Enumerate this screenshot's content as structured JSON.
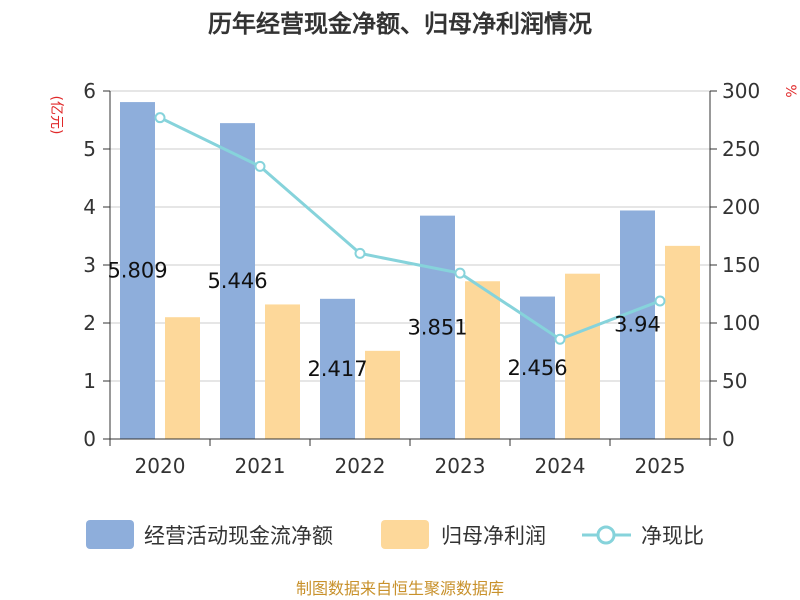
{
  "chart_data": {
    "type": "bar",
    "title": "历年经营现金净额、归母净利润情况",
    "categories": [
      "2020",
      "2021",
      "2022",
      "2023",
      "2024",
      "2025"
    ],
    "series": [
      {
        "name": "经营活动现金流净额",
        "axis": "left",
        "kind": "bar",
        "color": "#8eaedb",
        "values": [
          5.809,
          5.446,
          2.417,
          3.851,
          2.456,
          3.94
        ]
      },
      {
        "name": "归母净利润",
        "axis": "left",
        "kind": "bar",
        "color": "#fdd89a",
        "values": [
          2.1,
          2.32,
          1.52,
          2.72,
          2.85,
          3.33
        ]
      },
      {
        "name": "净现比",
        "axis": "right",
        "kind": "line",
        "color": "#86d3db",
        "values": [
          277,
          235,
          160,
          143,
          86,
          119
        ]
      }
    ],
    "data_labels": [
      "5.809",
      "5.446",
      "2.417",
      "3.851",
      "2.456",
      "3.94"
    ],
    "left_axis": {
      "unit": "(亿元)",
      "min": 0,
      "max": 6,
      "ticks": [
        "0",
        "1",
        "2",
        "3",
        "4",
        "5",
        "6"
      ]
    },
    "right_axis": {
      "unit": "%",
      "min": 0,
      "max": 300,
      "ticks": [
        "0",
        "50",
        "100",
        "150",
        "200",
        "250",
        "300"
      ]
    },
    "grid": true,
    "legend_position": "bottom"
  },
  "source": "制图数据来自恒生聚源数据库"
}
